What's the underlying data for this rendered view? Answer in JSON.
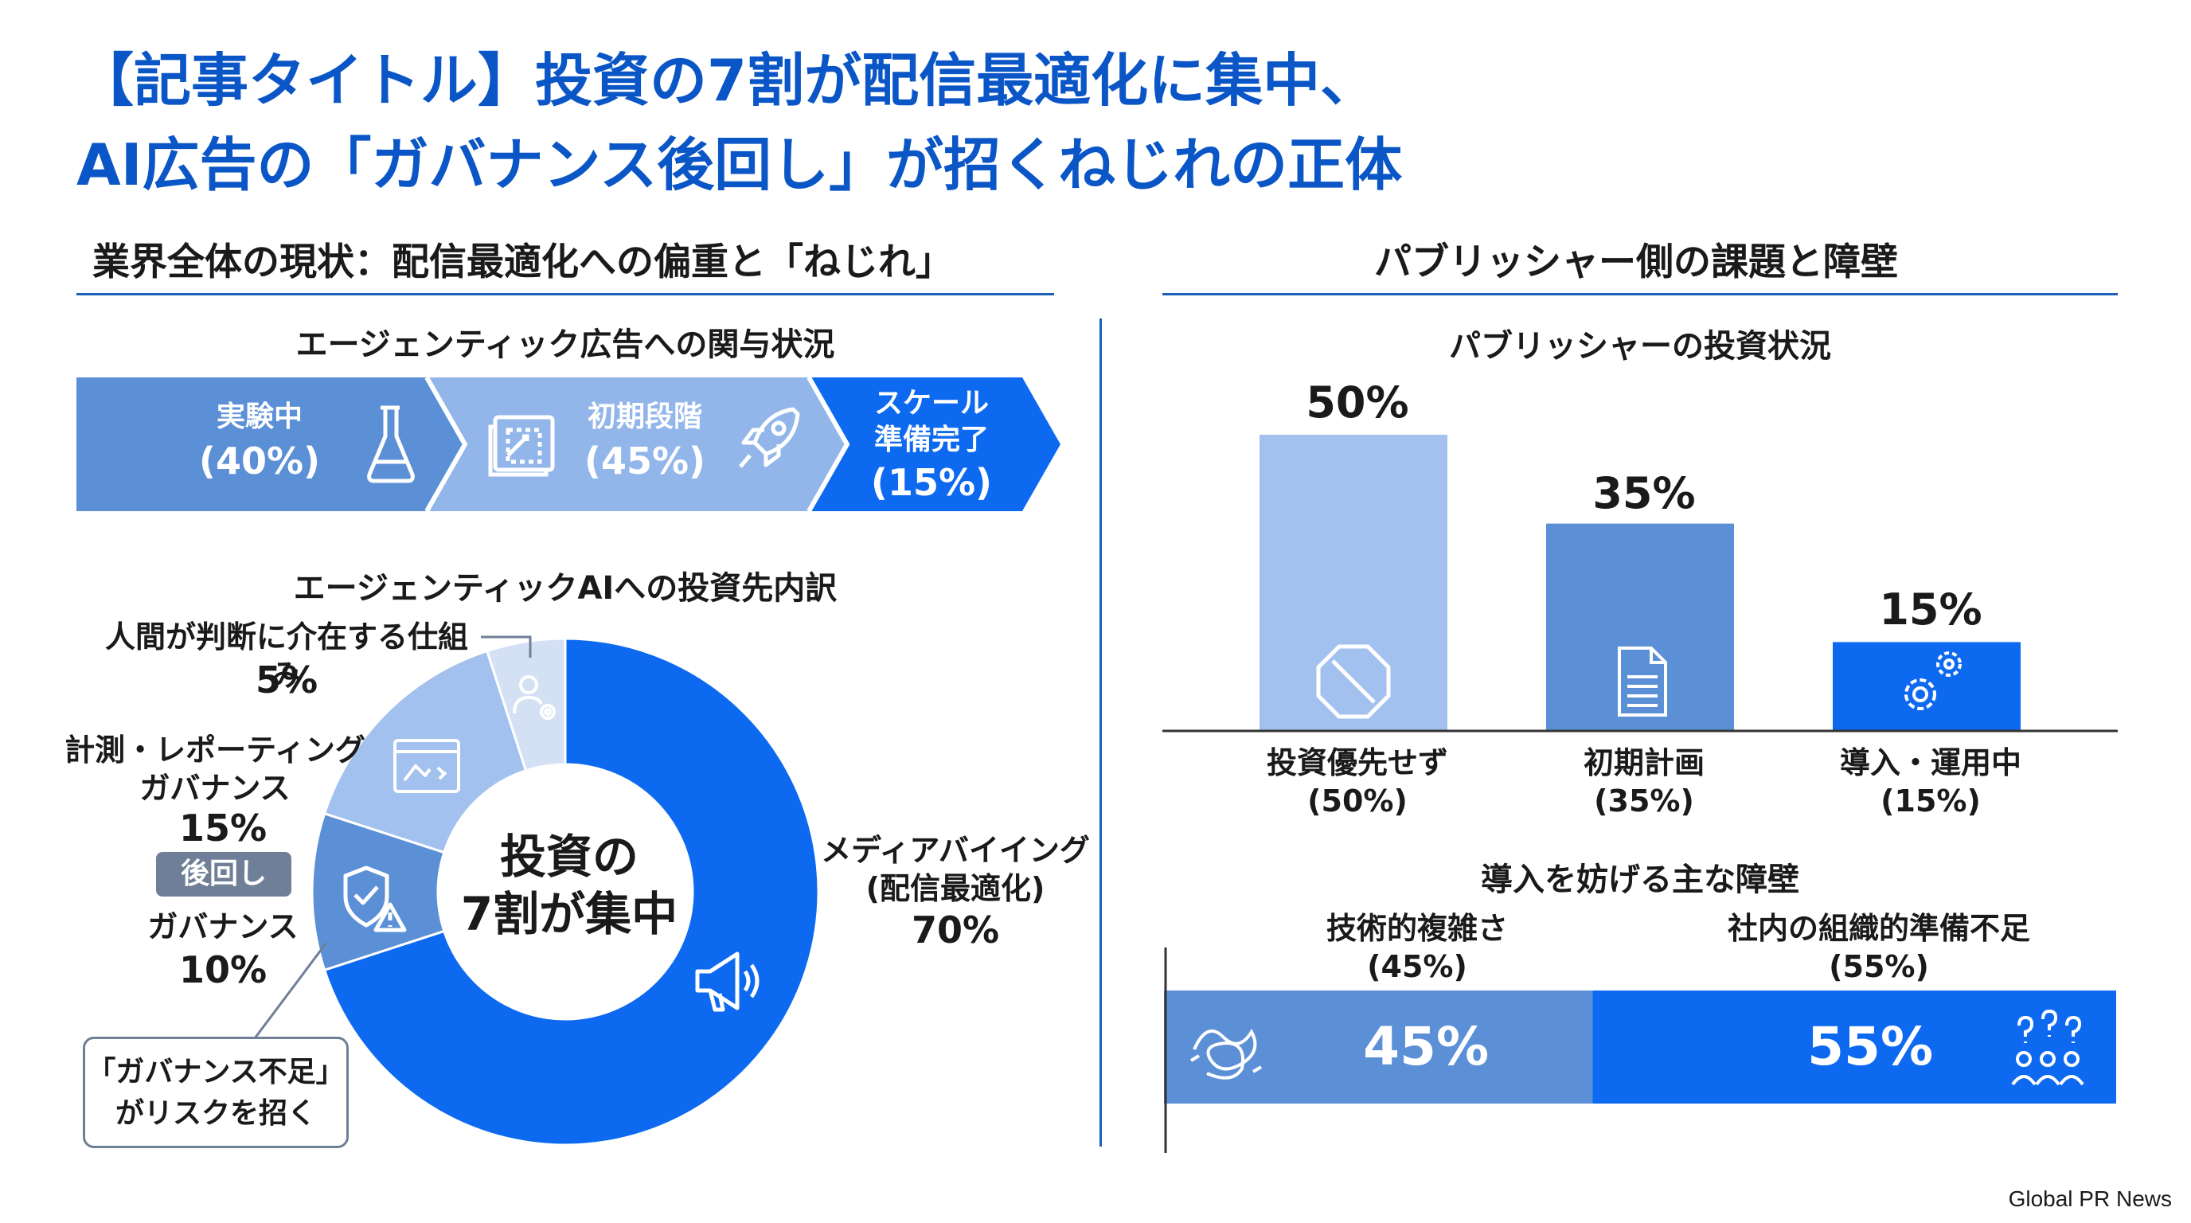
{
  "title_line1": "【記事タイトル】投資の7割が配信最適化に集中、",
  "title_line2": "AI広告の「ガバナンス後回し」が招くねじれの正体",
  "left_section": {
    "heading": "業界全体の現状：配信最適化への偏重と「ねじれ」",
    "stages_heading": "エージェンティック広告への関与状況",
    "stages": [
      {
        "label": "実験中",
        "value": "(40%)",
        "color": "#5b8fd6"
      },
      {
        "label": "初期段階",
        "value": "(45%)",
        "color": "#93b6ea"
      },
      {
        "label_line1": "スケール",
        "label_line2": "準備完了",
        "value": "(15%)",
        "color": "#0d6af0"
      }
    ],
    "donut_heading": "エージェンティックAIへの投資先内訳",
    "donut_center_line1": "投資の",
    "donut_center_line2": "7割が集中",
    "donut_labels": {
      "human": "人間が判断に介在する仕組み",
      "human_pct": "5%",
      "measure_line1": "計測・レポーティング",
      "measure_line2": "ガバナンス",
      "measure_pct": "15%",
      "gov": "ガバナンス",
      "gov_pct": "10%",
      "media_line1": "メディアバイイング",
      "media_line2": "(配信最適化)",
      "media_pct": "70%"
    },
    "badge": "後回し",
    "callout_line1": "「ガバナンス不足」",
    "callout_line2": "がリスクを招く"
  },
  "right_section": {
    "heading": "パブリッシャー側の課題と障壁",
    "bars_heading": "パブリッシャーの投資状況",
    "bar_pct_labels": [
      "50%",
      "35%",
      "15%"
    ],
    "bar_cat_labels": [
      "投資優先せず",
      "初期計画",
      "導入・運用中"
    ],
    "bar_cat_values": [
      "(50%)",
      "(35%)",
      "(15%)"
    ],
    "barriers_heading": "導入を妨げる主な障壁",
    "barrier_labels": [
      "技術的複雑さ",
      "社内の組織的準備不足"
    ],
    "barrier_values": [
      "(45%)",
      "(55%)"
    ],
    "barrier_bar_labels": [
      "45%",
      "55%"
    ]
  },
  "footer": "Global PR News",
  "colors": {
    "title_blue": "#0b56c7",
    "dark_blue": "#0d6af0",
    "mid_blue": "#5b8fd6",
    "light_blue": "#a3c1ee"
  },
  "chart_data": [
    {
      "type": "bar",
      "title": "エージェンティック広告への関与状況",
      "categories": [
        "実験中",
        "初期段階",
        "スケール準備完了"
      ],
      "values": [
        40,
        45,
        15
      ]
    },
    {
      "type": "pie",
      "title": "エージェンティックAIへの投資先内訳",
      "categories": [
        "メディアバイイング(配信最適化)",
        "ガバナンス",
        "計測・レポーティングガバナンス",
        "人間が判断に介在する仕組み"
      ],
      "values": [
        70,
        10,
        15,
        5
      ],
      "colors": [
        "#0d6af0",
        "#5b8fd6",
        "#a3c1ee",
        "#d4e1f5"
      ]
    },
    {
      "type": "bar",
      "title": "パブリッシャーの投資状況",
      "categories": [
        "投資優先せず",
        "初期計画",
        "導入・運用中"
      ],
      "values": [
        50,
        35,
        15
      ],
      "ylim": [
        0,
        50
      ],
      "colors": [
        "#a3c1ee",
        "#5b8fd6",
        "#0d6af0"
      ]
    },
    {
      "type": "bar",
      "title": "導入を妨げる主な障壁",
      "categories": [
        "技術的複雑さ",
        "社内の組織的準備不足"
      ],
      "values": [
        45,
        55
      ],
      "colors": [
        "#5b8fd6",
        "#0d6af0"
      ]
    }
  ]
}
